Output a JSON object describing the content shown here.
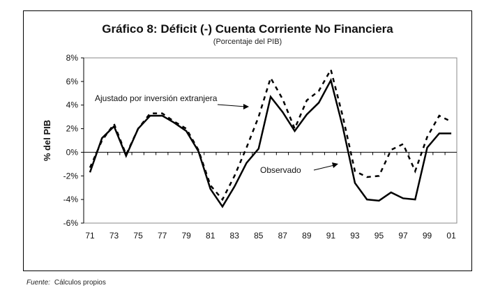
{
  "chart_data": {
    "type": "line",
    "title": "Gráfico 8: Déficit (-) Cuenta Corriente No Financiera",
    "subtitle": "(Porcentaje del PIB)",
    "xlabel": "",
    "ylabel": "% del PIB",
    "ylim": [
      -6,
      8
    ],
    "yticks": [
      "-6%",
      "-4%",
      "-2%",
      "0%",
      "2%",
      "4%",
      "6%",
      "8%"
    ],
    "ytick_values": [
      -6,
      -4,
      -2,
      0,
      2,
      4,
      6,
      8
    ],
    "x": [
      "71",
      "72",
      "73",
      "74",
      "75",
      "76",
      "77",
      "78",
      "79",
      "80",
      "81",
      "82",
      "83",
      "84",
      "85",
      "86",
      "87",
      "88",
      "89",
      "90",
      "91",
      "92",
      "93",
      "94",
      "95",
      "96",
      "97",
      "98",
      "99",
      "00",
      "01"
    ],
    "xtick_labels": [
      "71",
      "73",
      "75",
      "77",
      "79",
      "81",
      "83",
      "85",
      "87",
      "89",
      "91",
      "93",
      "95",
      "97",
      "99",
      "01"
    ],
    "series": [
      {
        "name": "Observado",
        "style": "solid",
        "values": [
          -1.7,
          1.2,
          2.2,
          -0.3,
          2.0,
          3.1,
          3.1,
          2.5,
          1.8,
          0.1,
          -3.1,
          -4.6,
          -2.9,
          -0.9,
          0.3,
          4.7,
          3.4,
          1.8,
          3.2,
          4.2,
          6.1,
          2.1,
          -2.6,
          -4.0,
          -4.1,
          -3.4,
          -3.9,
          -4.0,
          0.4,
          1.6,
          1.6
        ]
      },
      {
        "name": "Ajustado por inversión extranjera",
        "style": "dashed",
        "values": [
          -1.3,
          1.0,
          2.4,
          -0.2,
          2.0,
          3.3,
          3.3,
          2.6,
          2.0,
          0.2,
          -2.8,
          -4.0,
          -2.0,
          0.4,
          3.0,
          6.3,
          4.5,
          2.0,
          4.4,
          5.2,
          7.0,
          3.0,
          -1.6,
          -2.1,
          -2.0,
          0.2,
          0.7,
          -1.6,
          1.3,
          3.1,
          2.6
        ]
      }
    ],
    "annotations": [
      "Ajustado por inversión extranjera",
      "Observado"
    ],
    "grid": false,
    "legend": "annotations with arrows"
  },
  "footer": {
    "source_label": "Fuente:",
    "source_text": "Cálculos propios"
  }
}
